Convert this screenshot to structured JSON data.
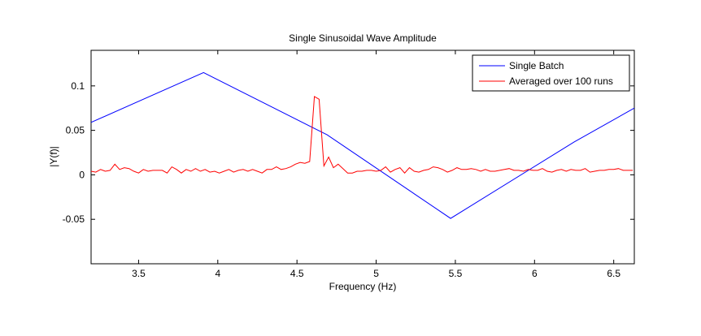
{
  "chart_data": {
    "type": "line",
    "title": "Single Sinusoidal Wave Amplitude",
    "xlabel": "Frequency (Hz)",
    "ylabel": "|Y(f)|",
    "xlim": [
      3.2,
      6.63
    ],
    "ylim": [
      -0.1,
      0.14
    ],
    "x_ticks": [
      3.5,
      4,
      4.5,
      5,
      5.5,
      6,
      6.5
    ],
    "x_tick_labels": [
      "3.5",
      "4",
      "4.5",
      "5",
      "5.5",
      "6",
      "6.5"
    ],
    "y_ticks": [
      -0.05,
      0,
      0.05,
      0.1
    ],
    "y_tick_labels": [
      "-0.05",
      "0",
      "0.05",
      "0.1"
    ],
    "grid": false,
    "legend_position": "top-right",
    "series": [
      {
        "name": "Single Batch",
        "color": "#0000ff",
        "x": [
          3.2,
          3.91,
          4.69,
          5.47,
          6.25,
          6.63
        ],
        "y": [
          0.059,
          0.115,
          0.045,
          -0.049,
          0.037,
          0.075
        ]
      },
      {
        "name": "Averaged over 100 runs",
        "color": "#ff0000",
        "x": [
          3.2,
          3.23,
          3.26,
          3.29,
          3.32,
          3.35,
          3.38,
          3.41,
          3.44,
          3.47,
          3.5,
          3.53,
          3.56,
          3.59,
          3.62,
          3.65,
          3.68,
          3.71,
          3.74,
          3.77,
          3.8,
          3.83,
          3.86,
          3.89,
          3.92,
          3.95,
          3.98,
          4.01,
          4.04,
          4.07,
          4.1,
          4.13,
          4.16,
          4.19,
          4.22,
          4.25,
          4.28,
          4.31,
          4.34,
          4.37,
          4.4,
          4.43,
          4.46,
          4.49,
          4.52,
          4.55,
          4.58,
          4.61,
          4.64,
          4.67,
          4.7,
          4.73,
          4.76,
          4.79,
          4.82,
          4.85,
          4.88,
          4.91,
          4.94,
          4.97,
          5.0,
          5.03,
          5.06,
          5.09,
          5.12,
          5.15,
          5.18,
          5.21,
          5.24,
          5.27,
          5.3,
          5.33,
          5.36,
          5.39,
          5.42,
          5.45,
          5.48,
          5.51,
          5.54,
          5.57,
          5.6,
          5.63,
          5.66,
          5.69,
          5.72,
          5.75,
          5.78,
          5.81,
          5.84,
          5.87,
          5.9,
          5.93,
          5.96,
          5.99,
          6.02,
          6.05,
          6.08,
          6.11,
          6.14,
          6.17,
          6.2,
          6.23,
          6.26,
          6.29,
          6.32,
          6.35,
          6.38,
          6.41,
          6.44,
          6.47,
          6.5,
          6.53,
          6.56,
          6.59,
          6.62
        ],
        "y": [
          0.004,
          0.003,
          0.006,
          0.004,
          0.005,
          0.012,
          0.006,
          0.008,
          0.007,
          0.004,
          0.002,
          0.006,
          0.004,
          0.005,
          0.005,
          0.005,
          0.002,
          0.009,
          0.006,
          0.002,
          0.006,
          0.004,
          0.007,
          0.004,
          0.006,
          0.003,
          0.004,
          0.002,
          0.004,
          0.006,
          0.003,
          0.005,
          0.006,
          0.004,
          0.006,
          0.004,
          0.002,
          0.006,
          0.006,
          0.009,
          0.006,
          0.007,
          0.009,
          0.012,
          0.014,
          0.013,
          0.015,
          0.088,
          0.085,
          0.01,
          0.02,
          0.008,
          0.012,
          0.007,
          0.002,
          0.002,
          0.004,
          0.004,
          0.005,
          0.005,
          0.004,
          0.005,
          0.009,
          0.003,
          0.006,
          0.008,
          0.002,
          0.008,
          0.004,
          0.003,
          0.005,
          0.006,
          0.009,
          0.008,
          0.006,
          0.003,
          0.005,
          0.008,
          0.006,
          0.006,
          0.007,
          0.006,
          0.004,
          0.006,
          0.004,
          0.004,
          0.005,
          0.006,
          0.007,
          0.005,
          0.005,
          0.004,
          0.006,
          0.005,
          0.005,
          0.007,
          0.004,
          0.003,
          0.005,
          0.006,
          0.004,
          0.006,
          0.005,
          0.005,
          0.007,
          0.003,
          0.004,
          0.005,
          0.005,
          0.006,
          0.006,
          0.007,
          0.005,
          0.005,
          0.005
        ]
      }
    ]
  }
}
